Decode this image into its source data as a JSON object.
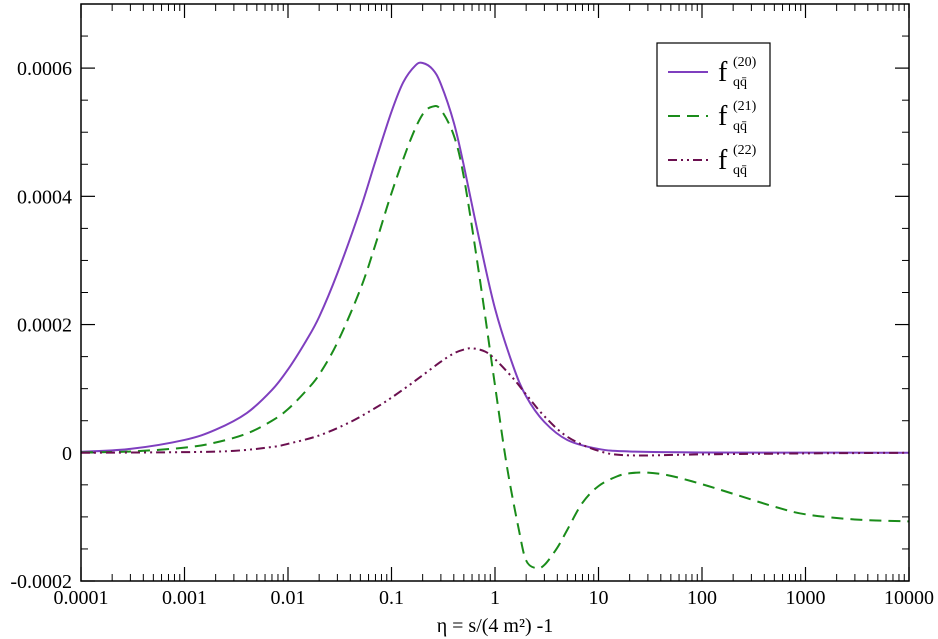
{
  "chart_data": {
    "type": "line",
    "xscale": "log",
    "xlim": [
      0.0001,
      10000
    ],
    "ylim": [
      -0.0002,
      0.0007
    ],
    "xlabel": "η = s/(4 m²) -1",
    "ylabel": "",
    "x_tick_labels": [
      "0.0001",
      "0.001",
      "0.01",
      "0.1",
      "1",
      "10",
      "100",
      "1000",
      "10000"
    ],
    "y_tick_labels": [
      "-0.0002",
      "0",
      "0.0002",
      "0.0004",
      "0.0006"
    ],
    "y_tick_values": [
      -0.0002,
      0,
      0.0002,
      0.0004,
      0.0006
    ],
    "grid": false,
    "legend_position": "top-right",
    "series": [
      {
        "name": "f_q q̄^(20)",
        "legend_main": "f",
        "legend_sup": "(20)",
        "legend_sub": "qq̄",
        "color": "#7f3fbf",
        "dash": "solid",
        "x": [
          0.0001,
          0.0003,
          0.001,
          0.002,
          0.004,
          0.007,
          0.01,
          0.015,
          0.02,
          0.03,
          0.05,
          0.07,
          0.1,
          0.13,
          0.17,
          0.2,
          0.25,
          0.3,
          0.4,
          0.5,
          0.7,
          1,
          1.5,
          2,
          3,
          5,
          10,
          20,
          100,
          1000,
          10000
        ],
        "y": [
          1.5e-06,
          6e-06,
          2e-05,
          3.6e-05,
          6.2e-05,
          9.8e-05,
          0.00013,
          0.000175,
          0.000212,
          0.00028,
          0.00038,
          0.000455,
          0.000532,
          0.000578,
          0.000604,
          0.000608,
          0.000598,
          0.000575,
          0.000515,
          0.000448,
          0.000335,
          0.000225,
          0.000135,
          8.8e-05,
          4.8e-05,
          2e-05,
          6e-06,
          2e-06,
          5e-07,
          2e-07,
          1e-07
        ]
      },
      {
        "name": "f_q q̄^(21)",
        "legend_main": "f",
        "legend_sup": "(21)",
        "legend_sub": "qq̄",
        "color": "#1a8c1a",
        "dash": "dashed",
        "x": [
          0.0001,
          0.0003,
          0.001,
          0.002,
          0.004,
          0.007,
          0.01,
          0.015,
          0.02,
          0.03,
          0.05,
          0.07,
          0.1,
          0.15,
          0.2,
          0.25,
          0.3,
          0.4,
          0.5,
          0.7,
          1,
          1.3,
          1.7,
          2,
          2.5,
          3,
          4,
          5,
          7,
          10,
          15,
          20,
          30,
          50,
          100,
          200,
          500,
          1000,
          3000,
          10000
        ],
        "y": [
          6e-07,
          2e-06,
          8e-06,
          1.6e-05,
          3e-05,
          5e-05,
          6.8e-05,
          9.7e-05,
          0.000122,
          0.000172,
          0.000255,
          0.000325,
          0.000405,
          0.000485,
          0.000528,
          0.00054,
          0.000535,
          0.000495,
          0.00043,
          0.00028,
          0.000105,
          -2e-05,
          -0.00012,
          -0.000168,
          -0.00018,
          -0.000175,
          -0.000148,
          -0.00012,
          -7.8e-05,
          -5.2e-05,
          -3.7e-05,
          -3.2e-05,
          -3.1e-05,
          -3.6e-05,
          -4.9e-05,
          -6.4e-05,
          -8.4e-05,
          -9.6e-05,
          -0.000104,
          -0.000107
        ]
      },
      {
        "name": "f_q q̄^(22)",
        "legend_main": "f",
        "legend_sup": "(22)",
        "legend_sub": "qq̄",
        "color": "#6b0f4f",
        "dash": "dash-dot-dot",
        "x": [
          0.0001,
          0.001,
          0.003,
          0.007,
          0.01,
          0.02,
          0.04,
          0.07,
          0.1,
          0.15,
          0.2,
          0.3,
          0.4,
          0.5,
          0.6,
          0.8,
          1,
          1.5,
          2,
          3,
          5,
          10,
          20,
          100,
          1000,
          10000
        ],
        "y": [
          0,
          1e-06,
          3e-06,
          9e-06,
          1.4e-05,
          2.7e-05,
          4.8e-05,
          7e-05,
          8.6e-05,
          0.000106,
          0.000121,
          0.000142,
          0.000155,
          0.000161,
          0.000163,
          0.000158,
          0.000146,
          0.000116,
          9.1e-05,
          5.7e-05,
          2.5e-05,
          3e-06,
          -4e-06,
          -2.5e-06,
          -1e-06,
          0
        ]
      }
    ]
  }
}
